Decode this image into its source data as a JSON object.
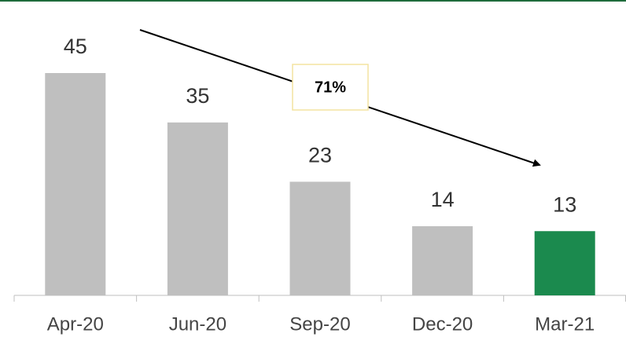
{
  "chart_data": {
    "type": "bar",
    "categories": [
      "Apr-20",
      "Jun-20",
      "Sep-20",
      "Dec-20",
      "Mar-21"
    ],
    "values": [
      45,
      35,
      23,
      14,
      13
    ],
    "colors": [
      "#bfbfbf",
      "#bfbfbf",
      "#bfbfbf",
      "#bfbfbf",
      "#1b8a4e"
    ],
    "annotation": "71%"
  }
}
